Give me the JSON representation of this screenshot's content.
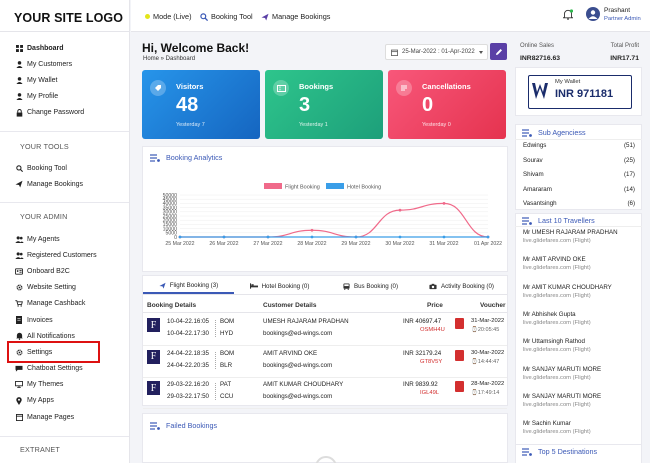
{
  "logo": "YOUR SITE LOGO",
  "nav": {
    "main": [
      {
        "label": "Dashboard",
        "icon": "grid-icon"
      },
      {
        "label": "My Customers",
        "icon": "user-icon"
      },
      {
        "label": "My Wallet",
        "icon": "user-icon"
      },
      {
        "label": "My Profile",
        "icon": "user-icon"
      },
      {
        "label": "Change Password",
        "icon": "lock-icon"
      }
    ],
    "tools_title": "YOUR TOOLS",
    "tools": [
      {
        "label": "Booking Tool",
        "icon": "search-icon"
      },
      {
        "label": "Manage Bookings",
        "icon": "plane-icon"
      }
    ],
    "admin_title": "YOUR ADMIN",
    "admin": [
      {
        "label": "My Agents",
        "icon": "users-icon"
      },
      {
        "label": "Registered Customers",
        "icon": "users-icon"
      },
      {
        "label": "Onboard B2C",
        "icon": "id-card-icon"
      },
      {
        "label": "Website Setting",
        "icon": "gear-icon"
      },
      {
        "label": "Manage Cashback",
        "icon": "cart-icon"
      },
      {
        "label": "Invoices",
        "icon": "receipt-icon"
      },
      {
        "label": "All Notifications",
        "icon": "bell-icon"
      },
      {
        "label": "Settings",
        "icon": "gear-icon"
      },
      {
        "label": "Chatboat Settings",
        "icon": "chat-icon"
      },
      {
        "label": "My Themes",
        "icon": "monitor-icon"
      },
      {
        "label": "My Apps",
        "icon": "pin-icon"
      },
      {
        "label": "Manage Pages",
        "icon": "page-icon"
      }
    ],
    "extranet_title": "EXTRANET"
  },
  "topbar": {
    "mode": "Mode (Live)",
    "booking_tool": "Booking Tool",
    "manage_bookings": "Manage Bookings",
    "user_name": "Prashant",
    "user_role": "Partner Admin"
  },
  "header": {
    "welcome": "Hi, Welcome Back!",
    "breadcrumb": "Home » Dashboard",
    "date_range": "25-Mar-2022 : 01-Apr-2022"
  },
  "cards": [
    {
      "title": "Visitors",
      "value": "48",
      "sub": "Yesterday 7",
      "color": "#1e88e5"
    },
    {
      "title": "Bookings",
      "value": "3",
      "sub": "Yesterday 1",
      "color": "#26b486"
    },
    {
      "title": "Cancellations",
      "value": "0",
      "sub": "Yesterday 0",
      "color": "#f04563"
    }
  ],
  "analytics": {
    "title": "Booking Analytics"
  },
  "chart_data": {
    "type": "line",
    "categories": [
      "25 Mar 2022",
      "26 Mar 2022",
      "27 Mar 2022",
      "28 Mar 2022",
      "29 Mar 2022",
      "30 Mar 2022",
      "31 Mar 2022",
      "01 Apr 2022"
    ],
    "series": [
      {
        "name": "Flight Booking",
        "values": [
          0,
          0,
          0,
          8000,
          0,
          32000,
          40000,
          0
        ],
        "color": "#f06a8a"
      },
      {
        "name": "Hotel Booking",
        "values": [
          0,
          0,
          0,
          0,
          0,
          0,
          0,
          0
        ],
        "color": "#3a9ee8"
      }
    ],
    "yticks": [
      "0",
      "5000",
      "10000",
      "15000",
      "20000",
      "25000",
      "30000",
      "35000",
      "40000",
      "45000",
      "50000"
    ],
    "ylim": [
      0,
      50000
    ]
  },
  "tabs": [
    {
      "label": "Flight Booking (3)",
      "icon": "plane-icon"
    },
    {
      "label": "Hotel Booking (0)",
      "icon": "bed-icon"
    },
    {
      "label": "Bus Booking (0)",
      "icon": "bus-icon"
    },
    {
      "label": "Activity Booking (0)",
      "icon": "camera-icon"
    }
  ],
  "table": {
    "headers": {
      "booking": "Booking Details",
      "customer": "Customer Details",
      "price": "Price",
      "voucher": "Voucher"
    },
    "rows": [
      {
        "dep": "10-04-22.16:05",
        "from": "BOM",
        "arr": "10-04-22.17:30",
        "to": "HYD",
        "name": "UMESH RAJARAM PRADHAN",
        "email": "bookings@ed-wings.com",
        "price": "INR 40697.47",
        "pnr": "OSMH4U",
        "vdate": "31-Mar-2022",
        "vtime": "20:05:45"
      },
      {
        "dep": "24-04-22.18:35",
        "from": "BOM",
        "arr": "24-04-22.20:35",
        "to": "BLR",
        "name": "AMIT ARVIND OKE",
        "email": "bookings@ed-wings.com",
        "price": "INR 32179.24",
        "pnr": "GT8V5Y",
        "vdate": "30-Mar-2022",
        "vtime": "14:44:47"
      },
      {
        "dep": "29-03-22.16:20",
        "from": "PAT",
        "arr": "29-03-22.17:50",
        "to": "CCU",
        "name": "AMIT KUMAR CHOUDHARY",
        "email": "bookings@ed-wings.com",
        "price": "INR 9839.92",
        "pnr": "IGL49L",
        "vdate": "28-Mar-2022",
        "vtime": "17:49:14"
      }
    ]
  },
  "failed": {
    "title": "Failed Bookings"
  },
  "right": {
    "online_sales_label": "Online Sales",
    "online_sales_value": "INR82716.63",
    "total_profit_label": "Total Profit",
    "total_profit_value": "INR17.71",
    "wallet_label": "My Wallet",
    "wallet_value": "INR 971181",
    "sub_agencies_title": "Sub Agenciess",
    "sub_agencies": [
      {
        "name": "Edwings",
        "count": "(51)"
      },
      {
        "name": "Sourav",
        "count": "(25)"
      },
      {
        "name": "Shivam",
        "count": "(17)"
      },
      {
        "name": "Amararam",
        "count": "(14)"
      },
      {
        "name": "Vasantsingh",
        "count": "(6)"
      }
    ],
    "travellers_title": "Last 10 Travellers",
    "travellers": [
      {
        "name": "Mr UMESH RAJARAM PRADHAN",
        "sub": "live.glidefares.com (Flight)"
      },
      {
        "name": "Mr AMIT ARVIND OKE",
        "sub": "live.glidefares.com (Flight)"
      },
      {
        "name": "Mr AMIT KUMAR CHOUDHARY",
        "sub": "live.glidefares.com (Flight)"
      },
      {
        "name": "Mr Abhishek Gupta",
        "sub": "live.glidefares.com (Flight)"
      },
      {
        "name": "Mr Uttamsingh Rathod",
        "sub": "live.glidefares.com (Flight)"
      },
      {
        "name": "Mr SANJAY MARUTI MORE",
        "sub": "live.glidefares.com (Flight)"
      },
      {
        "name": "Mr SANJAY MARUTI MORE",
        "sub": "live.glidefares.com (Flight)"
      },
      {
        "name": "Mr Sachin Kumar",
        "sub": "live.glidefares.com (Flight)"
      }
    ],
    "top_dest_title": "Top 5 Destinations"
  }
}
